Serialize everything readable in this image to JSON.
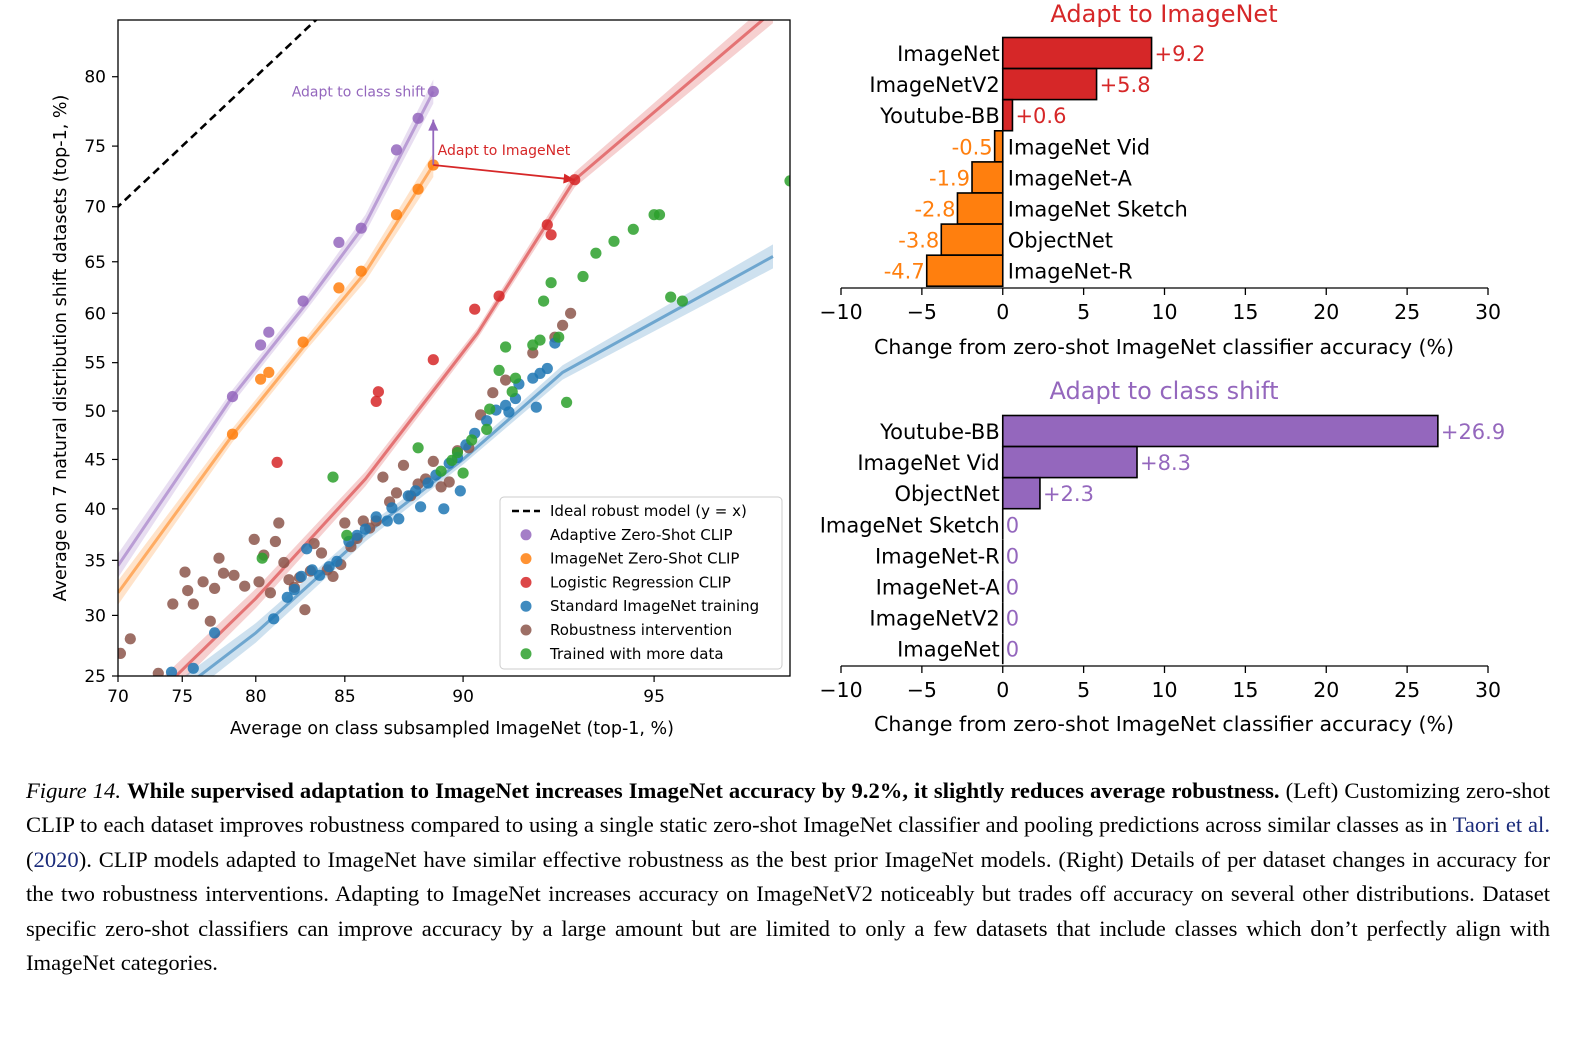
{
  "chart_data": [
    {
      "type": "scatter",
      "xlabel": "Average on class subsampled ImageNet (top-1, %)",
      "ylabel": "Average on 7 natural distribution shift datasets (top-1, %)",
      "xlim": [
        70,
        97
      ],
      "ylim": [
        25,
        83.5
      ],
      "xticks": [
        70,
        75,
        80,
        85,
        90,
        95
      ],
      "yticks": [
        25,
        30,
        35,
        40,
        45,
        50,
        55,
        60,
        65,
        70,
        75,
        80
      ],
      "scale": "logit",
      "grid": false,
      "legend_position": "bottom-right",
      "legend": [
        "Ideal robust model (y = x)",
        "Adaptive Zero-Shot CLIP",
        "ImageNet Zero-Shot CLIP",
        "Logistic Regression CLIP",
        "Standard ImageNet training",
        "Robustness intervention",
        "Trained with more data"
      ],
      "colors": {
        "ideal": "#000000",
        "adaptive": "#9467bd",
        "zeroshot": "#ff7f0e",
        "logreg": "#d62728",
        "standard": "#1f77b4",
        "robust": "#8c564b",
        "moredata": "#2ca02c"
      },
      "annotations": [
        {
          "text": "Adapt to class shift",
          "from": [
            88.9,
            73.5
          ],
          "to": [
            88.9,
            77.0
          ],
          "color": "#9467bd"
        },
        {
          "text": "Adapt to ImageNet",
          "from": [
            88.9,
            73.5
          ],
          "to": [
            93.3,
            72.3
          ],
          "color": "#d62728"
        }
      ],
      "fit_lines": [
        {
          "series": "adaptive",
          "points": [
            [
              70,
              34.5
            ],
            [
              78.5,
              51.5
            ],
            [
              83,
              61
            ],
            [
              86,
              68.5
            ],
            [
              88.9,
              79
            ]
          ]
        },
        {
          "series": "zeroshot",
          "points": [
            [
              70,
              32
            ],
            [
              78.5,
              47.5
            ],
            [
              83,
              57
            ],
            [
              86,
              64
            ],
            [
              88.9,
              73.5
            ]
          ]
        },
        {
          "series": "logreg",
          "points": [
            [
              73,
              23.5
            ],
            [
              80,
              31.5
            ],
            [
              86,
              43
            ],
            [
              90.5,
              58
            ],
            [
              93.3,
              72.3
            ],
            [
              96.8,
              84
            ]
          ]
        },
        {
          "series": "standard",
          "points": [
            [
              73,
              22.5
            ],
            [
              80,
              28.5
            ],
            [
              86,
              37.5
            ],
            [
              90,
              45
            ],
            [
              93,
              54
            ],
            [
              96.8,
              65.5
            ]
          ]
        }
      ],
      "series": [
        {
          "key": "adaptive",
          "name": "Adaptive Zero-Shot CLIP",
          "points": [
            [
              78.5,
              51.5
            ],
            [
              80.3,
              56.8
            ],
            [
              80.8,
              58.1
            ],
            [
              82.8,
              61.2
            ],
            [
              84.7,
              66.8
            ],
            [
              85.8,
              68.1
            ],
            [
              87.4,
              74.7
            ],
            [
              88.3,
              77.1
            ],
            [
              88.9,
              79.0
            ]
          ]
        },
        {
          "key": "zeroshot",
          "name": "ImageNet Zero-Shot CLIP",
          "points": [
            [
              78.5,
              47.6
            ],
            [
              80.3,
              53.3
            ],
            [
              80.8,
              54.0
            ],
            [
              82.8,
              57.1
            ],
            [
              84.7,
              62.5
            ],
            [
              85.8,
              64.1
            ],
            [
              87.4,
              69.3
            ],
            [
              88.3,
              71.5
            ],
            [
              88.9,
              73.5
            ]
          ]
        },
        {
          "key": "logreg",
          "name": "Logistic Regression CLIP",
          "points": [
            [
              81.3,
              44.7
            ],
            [
              86.5,
              51.0
            ],
            [
              86.6,
              52.0
            ],
            [
              88.9,
              55.3
            ],
            [
              90.4,
              60.4
            ],
            [
              91.2,
              61.7
            ],
            [
              92.6,
              68.4
            ],
            [
              92.7,
              67.5
            ],
            [
              93.3,
              72.3
            ]
          ]
        },
        {
          "key": "standard",
          "name": "Standard ImageNet training",
          "points": [
            [
              73.0,
              24.5
            ],
            [
              74.2,
              25.3
            ],
            [
              75.8,
              25.6
            ],
            [
              77.3,
              28.5
            ],
            [
              81.1,
              29.7
            ],
            [
              81.9,
              31.6
            ],
            [
              82.3,
              32.3
            ],
            [
              82.7,
              33.5
            ],
            [
              83.0,
              36.1
            ],
            [
              83.3,
              34.1
            ],
            [
              83.7,
              33.6
            ],
            [
              84.2,
              34.4
            ],
            [
              84.6,
              34.9
            ],
            [
              85.2,
              36.8
            ],
            [
              85.6,
              37.4
            ],
            [
              86.0,
              38.0
            ],
            [
              86.5,
              39.2
            ],
            [
              87.0,
              38.8
            ],
            [
              87.2,
              40.1
            ],
            [
              87.5,
              39.0
            ],
            [
              87.9,
              41.3
            ],
            [
              88.2,
              41.8
            ],
            [
              88.4,
              40.2
            ],
            [
              88.7,
              42.6
            ],
            [
              89.0,
              43.4
            ],
            [
              89.3,
              40.0
            ],
            [
              89.5,
              44.6
            ],
            [
              89.8,
              45.2
            ],
            [
              90.1,
              46.5
            ],
            [
              90.4,
              47.7
            ],
            [
              90.8,
              49.0
            ],
            [
              91.1,
              50.1
            ],
            [
              91.4,
              50.6
            ],
            [
              91.7,
              51.3
            ],
            [
              91.8,
              52.8
            ],
            [
              92.2,
              53.4
            ],
            [
              92.4,
              53.9
            ],
            [
              92.6,
              54.4
            ],
            [
              92.8,
              57.0
            ],
            [
              92.3,
              50.4
            ],
            [
              91.5,
              49.9
            ],
            [
              89.9,
              41.8
            ]
          ]
        },
        {
          "key": "robust",
          "name": "Robustness intervention",
          "points": [
            [
              70.2,
              26.8
            ],
            [
              71.0,
              28.0
            ],
            [
              73.2,
              25.2
            ],
            [
              74.3,
              31.0
            ],
            [
              75.2,
              33.9
            ],
            [
              75.4,
              32.2
            ],
            [
              75.8,
              31.0
            ],
            [
              76.5,
              33.0
            ],
            [
              77.0,
              29.5
            ],
            [
              77.3,
              32.4
            ],
            [
              77.6,
              35.2
            ],
            [
              77.9,
              33.8
            ],
            [
              78.6,
              33.6
            ],
            [
              79.3,
              32.6
            ],
            [
              79.9,
              37.0
            ],
            [
              80.2,
              33.0
            ],
            [
              80.5,
              35.5
            ],
            [
              80.9,
              32.0
            ],
            [
              81.2,
              36.8
            ],
            [
              81.4,
              38.6
            ],
            [
              81.7,
              34.8
            ],
            [
              82.0,
              33.2
            ],
            [
              82.3,
              32.5
            ],
            [
              82.6,
              33.4
            ],
            [
              82.9,
              30.5
            ],
            [
              83.2,
              34.0
            ],
            [
              83.4,
              36.6
            ],
            [
              83.8,
              35.7
            ],
            [
              84.1,
              34.1
            ],
            [
              84.4,
              33.5
            ],
            [
              84.8,
              34.6
            ],
            [
              85.0,
              38.6
            ],
            [
              85.3,
              36.3
            ],
            [
              85.6,
              37.1
            ],
            [
              85.9,
              38.8
            ],
            [
              86.2,
              38.1
            ],
            [
              86.5,
              38.8
            ],
            [
              86.8,
              43.2
            ],
            [
              87.1,
              40.7
            ],
            [
              87.4,
              41.6
            ],
            [
              87.7,
              44.4
            ],
            [
              88.0,
              41.3
            ],
            [
              88.3,
              42.5
            ],
            [
              88.6,
              43.0
            ],
            [
              88.9,
              44.8
            ],
            [
              89.2,
              42.2
            ],
            [
              89.5,
              42.7
            ],
            [
              89.8,
              45.9
            ],
            [
              90.2,
              46.2
            ],
            [
              90.6,
              49.6
            ],
            [
              91.0,
              51.9
            ],
            [
              91.4,
              53.2
            ],
            [
              92.2,
              56.0
            ],
            [
              92.8,
              57.6
            ],
            [
              93.0,
              58.8
            ],
            [
              93.2,
              60.0
            ]
          ]
        },
        {
          "key": "moredata",
          "name": "Trained with more data",
          "points": [
            [
              80.4,
              35.2
            ],
            [
              84.4,
              43.2
            ],
            [
              85.1,
              37.4
            ],
            [
              88.3,
              46.2
            ],
            [
              89.2,
              43.8
            ],
            [
              89.6,
              44.9
            ],
            [
              89.8,
              45.7
            ],
            [
              90.0,
              43.6
            ],
            [
              90.3,
              47.0
            ],
            [
              90.8,
              48.1
            ],
            [
              90.9,
              50.2
            ],
            [
              91.2,
              54.2
            ],
            [
              91.4,
              56.6
            ],
            [
              91.6,
              52.0
            ],
            [
              91.7,
              53.4
            ],
            [
              92.2,
              56.8
            ],
            [
              92.4,
              57.3
            ],
            [
              92.5,
              61.2
            ],
            [
              92.7,
              63.0
            ],
            [
              92.9,
              57.6
            ],
            [
              93.1,
              50.9
            ],
            [
              93.5,
              63.6
            ],
            [
              93.8,
              65.8
            ],
            [
              94.2,
              66.9
            ],
            [
              94.6,
              68.0
            ],
            [
              95.0,
              69.3
            ],
            [
              95.1,
              69.3
            ],
            [
              95.3,
              61.6
            ],
            [
              95.5,
              61.2
            ],
            [
              97.0,
              72.2
            ]
          ]
        }
      ]
    },
    {
      "type": "bar",
      "orientation": "horizontal",
      "title": "Adapt to ImageNet",
      "title_color": "#d62728",
      "xlabel": "Change from zero-shot ImageNet classifier accuracy (%)",
      "xlim": [
        -10,
        30
      ],
      "xticks": [
        -10,
        -5,
        0,
        5,
        10,
        15,
        20,
        25,
        30
      ],
      "xtick_labels": [
        "−10",
        "−5",
        "0",
        "5",
        "10",
        "15",
        "20",
        "25",
        "30"
      ],
      "categories": [
        "ImageNet",
        "ImageNetV2",
        "Youtube-BB",
        "ImageNet Vid",
        "ImageNet-A",
        "ImageNet Sketch",
        "ObjectNet",
        "ImageNet-R"
      ],
      "values": [
        9.2,
        5.8,
        0.6,
        -0.5,
        -1.9,
        -2.8,
        -3.8,
        -4.7
      ],
      "value_labels": [
        "+9.2",
        "+5.8",
        "+0.6",
        "-0.5",
        "-1.9",
        "-2.8",
        "-3.8",
        "-4.7"
      ],
      "positive_color": "#d62728",
      "negative_color": "#ff7f0e"
    },
    {
      "type": "bar",
      "orientation": "horizontal",
      "title": "Adapt to class shift",
      "title_color": "#9467bd",
      "xlabel": "Change from zero-shot ImageNet classifier accuracy (%)",
      "xlim": [
        -10,
        30
      ],
      "xticks": [
        -10,
        -5,
        0,
        5,
        10,
        15,
        20,
        25,
        30
      ],
      "xtick_labels": [
        "−10",
        "−5",
        "0",
        "5",
        "10",
        "15",
        "20",
        "25",
        "30"
      ],
      "categories": [
        "Youtube-BB",
        "ImageNet Vid",
        "ObjectNet",
        "ImageNet Sketch",
        "ImageNet-R",
        "ImageNet-A",
        "ImageNetV2",
        "ImageNet"
      ],
      "values": [
        26.9,
        8.3,
        2.3,
        0,
        0,
        0,
        0,
        0
      ],
      "value_labels": [
        "+26.9",
        "+8.3",
        "+2.3",
        "0",
        "0",
        "0",
        "0",
        "0"
      ],
      "positive_color": "#9467bd",
      "negative_color": "#9467bd"
    }
  ],
  "caption": {
    "figure_label": "Figure 14.",
    "bold_text": "While supervised adaptation to ImageNet increases ImageNet accuracy by 9.2%, it slightly reduces average robustness.",
    "text_before_cite": "(Left) Customizing zero-shot CLIP to each dataset improves robustness compared to using a single static zero-shot ImageNet classifier and pooling predictions across similar classes as in",
    "cite_author": "Taori et al.",
    "cite_year": "2020",
    "text_after_cite": ". CLIP models adapted to ImageNet have similar effective robustness as the best prior ImageNet models. (Right) Details of per dataset changes in accuracy for the two robustness interventions. Adapting to ImageNet increases accuracy on ImageNetV2 noticeably but trades off accuracy on several other distributions. Dataset specific zero-shot classifiers can improve accuracy by a large amount but are limited to only a few datasets that include classes which don’t perfectly align with ImageNet categories."
  }
}
